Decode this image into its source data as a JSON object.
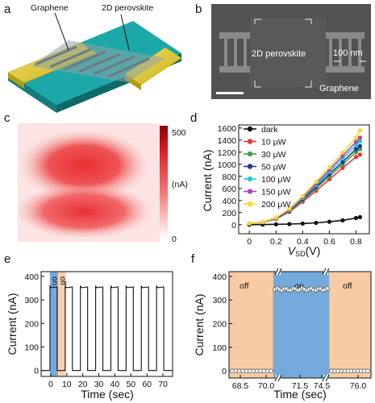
{
  "panels": {
    "a": {
      "label": "a",
      "callouts": [
        "Graphene",
        "2D perovskite"
      ]
    },
    "b": {
      "label": "b",
      "perovskite_label": "2D perovskite",
      "graphene_label": "Graphene",
      "scale_label": "100 nm"
    },
    "c": {
      "label": "c",
      "colorbar_min": "0",
      "colorbar_max": "500",
      "colorbar_unit": "(nA)"
    },
    "d": {
      "label": "d"
    },
    "e": {
      "label": "e",
      "on_label": "on",
      "off_label": "off"
    },
    "f": {
      "label": "f",
      "region_labels": [
        "off",
        "on",
        "off"
      ]
    }
  },
  "colors": {
    "gold": "#e6cf2b",
    "teal_substrate": "#1ca8a8",
    "heat_red": "#e8262a",
    "on_region_blue": "#5b9bd5",
    "off_region_peach": "#f8cba4"
  },
  "chart_data": [
    {
      "panel": "d",
      "type": "line",
      "xlabel": "V",
      "xlabel_sub": "SD",
      "xlabel_unit": "(V)",
      "ylabel": "Current (nA)",
      "xlim": [
        -0.08,
        0.9
      ],
      "ylim": [
        -150,
        1650
      ],
      "xticks": [
        "0",
        "0.2",
        "0.4",
        "0.6",
        "0.8"
      ],
      "yticks": [
        "0",
        "200",
        "400",
        "600",
        "800",
        "1000",
        "1200",
        "1400",
        "1600"
      ],
      "legend_position": "top-left",
      "x": [
        0.0,
        0.1,
        0.2,
        0.3,
        0.4,
        0.5,
        0.6,
        0.7,
        0.8,
        0.83
      ],
      "series": [
        {
          "name": "dark",
          "color": "#111111",
          "values": [
            0,
            2,
            6,
            10,
            18,
            30,
            48,
            72,
            110,
            125
          ]
        },
        {
          "name": "10 μW",
          "color": "#e53935",
          "values": [
            20,
            40,
            95,
            210,
            380,
            560,
            750,
            940,
            1120,
            1160
          ]
        },
        {
          "name": "30 μW",
          "color": "#43a047",
          "values": [
            20,
            42,
            100,
            225,
            405,
            600,
            800,
            1000,
            1200,
            1250
          ]
        },
        {
          "name": "50 μW",
          "color": "#1e3a8a",
          "values": [
            20,
            43,
            105,
            235,
            420,
            625,
            835,
            1040,
            1250,
            1300
          ]
        },
        {
          "name": "100 μW",
          "color": "#26c6da",
          "values": [
            20,
            44,
            110,
            245,
            440,
            655,
            875,
            1095,
            1315,
            1380
          ]
        },
        {
          "name": "150 μW",
          "color": "#ab47bc",
          "values": [
            20,
            45,
            113,
            255,
            455,
            680,
            910,
            1140,
            1370,
            1440
          ]
        },
        {
          "name": "200 μW",
          "color": "#fdd835",
          "values": [
            20,
            46,
            118,
            265,
            475,
            710,
            950,
            1195,
            1440,
            1560
          ]
        }
      ]
    },
    {
      "panel": "e",
      "type": "line",
      "xlabel": "Time (sec)",
      "ylabel": "Current (nA)",
      "xlim": [
        -6,
        76
      ],
      "ylim": [
        -25,
        420
      ],
      "xticks": [
        "0",
        "10",
        "20",
        "30",
        "40",
        "50",
        "60",
        "70"
      ],
      "yticks": [
        "0",
        "100",
        "200",
        "300",
        "400"
      ],
      "period_sec": 9.5,
      "on_duration_sec": 4.5,
      "cycles": 8,
      "on_current_nA": 352,
      "off_current_nA": 0,
      "on_region_sec": [
        -0.5,
        4.5
      ],
      "off_region_sec": [
        4.5,
        9.5
      ]
    },
    {
      "panel": "f",
      "type": "scatter",
      "xlabel": "Time (sec)",
      "ylabel": "Current (nA)",
      "ylim": [
        -30,
        420
      ],
      "xticks": [
        "68.5",
        "70.0",
        "71.5",
        "74.5",
        "76.0"
      ],
      "yticks": [
        "0",
        "100",
        "200",
        "300",
        "400"
      ],
      "on_current_nA": 345,
      "off_current_nA": 0,
      "off_points_left": 12,
      "on_points": 24,
      "off_points_right": 12
    }
  ]
}
